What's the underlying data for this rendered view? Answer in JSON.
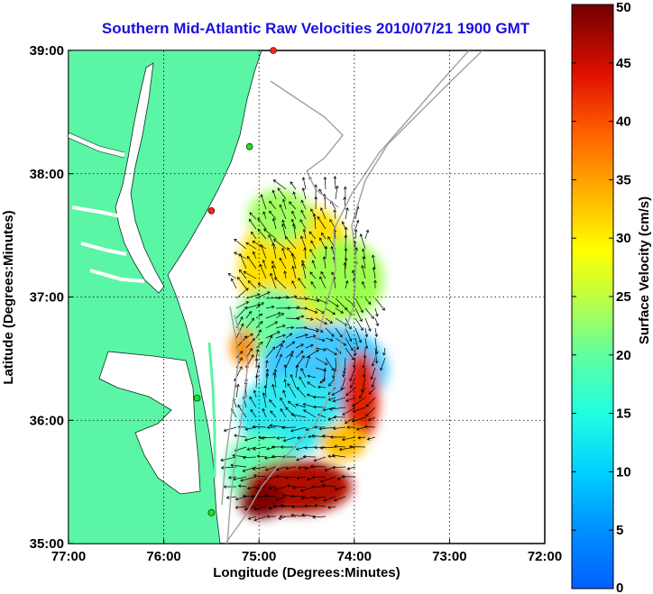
{
  "title": "Southern Mid-Atlantic Raw Velocities 2010/07/21 1900 GMT",
  "x_axis": {
    "label": "Longitude (Degrees:Minutes)",
    "ticks": [
      "77:00",
      "76:00",
      "75:00",
      "74:00",
      "73:00",
      "72:00"
    ]
  },
  "y_axis": {
    "label": "Latitude (Degrees:Minutes)",
    "ticks": [
      "39:00",
      "38:00",
      "37:00",
      "36:00",
      "35:00"
    ]
  },
  "colorbar": {
    "label": "Surface Velocity (cm/s)",
    "ticks": [
      "50",
      "45",
      "40",
      "35",
      "30",
      "25",
      "20",
      "15",
      "10",
      "5",
      "0"
    ],
    "min": 0,
    "max": 50
  },
  "colors": {
    "land": "#5bf5a6",
    "title": "#1a10e0",
    "arrows": "#000000",
    "bathymetry": "#a0a0a0"
  },
  "map_extent": {
    "lon": [
      -77,
      -72
    ],
    "lat": [
      35,
      39
    ]
  },
  "stations": [
    {
      "lon": -74.85,
      "lat": 39.0,
      "color": "#ff2020"
    },
    {
      "lon": -75.1,
      "lat": 38.22,
      "color": "#20e020"
    },
    {
      "lon": -75.5,
      "lat": 37.7,
      "color": "#ff2020"
    },
    {
      "lon": -75.65,
      "lat": 36.18,
      "color": "#20e020"
    },
    {
      "lon": -75.5,
      "lat": 35.25,
      "color": "#20e020"
    }
  ]
}
